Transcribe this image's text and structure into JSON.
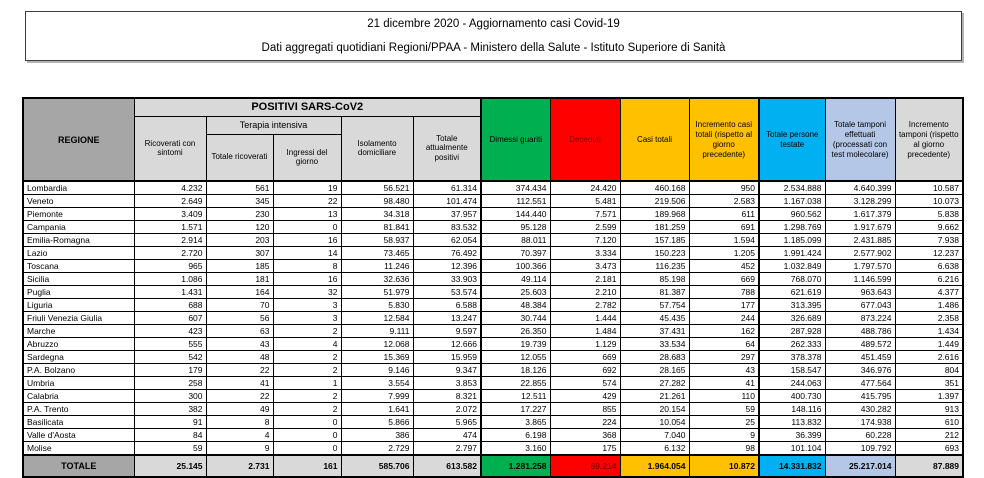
{
  "title": {
    "line1": "21 dicembre 2020 - Aggiornamento casi Covid-19",
    "line2": "Dati aggregati quotidiani Regioni/PPAA - Ministero della Salute - Istituto Superiore di Sanità"
  },
  "colors": {
    "green": "#00B050",
    "red": "#FF0000",
    "gold": "#FFC000",
    "cyan": "#00B0F0",
    "light_blue": "#B4C7E7",
    "light_gray": "#D9D9D9",
    "medium_gray": "#A6A6A6",
    "deceduti_text": "#8B0000"
  },
  "table": {
    "region_header": "REGIONE",
    "groups": {
      "positivi": "POSITIVI SARS-CoV2",
      "terapia_intensiva": "Terapia intensiva"
    },
    "sub_headers": {
      "ricoverati": "Ricoverati con sintomi",
      "totale_ricoverati": "Totale ricoverati",
      "ingressi": "Ingressi del giorno",
      "isolamento": "Isolamento domiciliare",
      "attualmente_positivi": "Totale attualmente positivi"
    },
    "colored_headers": {
      "dimessi": "Dimessi guariti",
      "deceduti": "Deceduti",
      "casi_totali": "Casi totali",
      "incremento_casi": "Incremento casi totali (rispetto al giorno precedente)",
      "persone_testate": "Totale persone testate",
      "tamponi": "Totale tamponi effettuati (processati con test molecolare)",
      "incremento_tamponi": "Incremento tamponi (rispetto al giorno precedente)"
    },
    "rows": [
      {
        "region": "Lombardia",
        "values": [
          "4.232",
          "561",
          "19",
          "56.521",
          "61.314",
          "374.434",
          "24.420",
          "460.168",
          "950",
          "2.534.888",
          "4.640.399",
          "10.587"
        ]
      },
      {
        "region": "Veneto",
        "values": [
          "2.649",
          "345",
          "22",
          "98.480",
          "101.474",
          "112.551",
          "5.481",
          "219.506",
          "2.583",
          "1.167.038",
          "3.128.299",
          "10.073"
        ]
      },
      {
        "region": "Piemonte",
        "values": [
          "3.409",
          "230",
          "13",
          "34.318",
          "37.957",
          "144.440",
          "7.571",
          "189.968",
          "611",
          "960.562",
          "1.617.379",
          "5.838"
        ]
      },
      {
        "region": "Campania",
        "values": [
          "1.571",
          "120",
          "0",
          "81.841",
          "83.532",
          "95.128",
          "2.599",
          "181.259",
          "691",
          "1.298.769",
          "1.917.679",
          "9.662"
        ]
      },
      {
        "region": "Emilia-Romagna",
        "values": [
          "2.914",
          "203",
          "16",
          "58.937",
          "62.054",
          "88.011",
          "7.120",
          "157.185",
          "1.594",
          "1.185.099",
          "2.431.885",
          "7.938"
        ]
      },
      {
        "region": "Lazio",
        "values": [
          "2.720",
          "307",
          "14",
          "73.465",
          "76.492",
          "70.397",
          "3.334",
          "150.223",
          "1.205",
          "1.991.424",
          "2.577.902",
          "12.237"
        ]
      },
      {
        "region": "Toscana",
        "values": [
          "965",
          "185",
          "8",
          "11.246",
          "12.396",
          "100.366",
          "3.473",
          "116.235",
          "452",
          "1.032.849",
          "1.797.570",
          "6.638"
        ]
      },
      {
        "region": "Sicilia",
        "values": [
          "1.086",
          "181",
          "16",
          "32.636",
          "33.903",
          "49.114",
          "2.181",
          "85.198",
          "669",
          "768.070",
          "1.146.599",
          "6.216"
        ]
      },
      {
        "region": "Puglia",
        "values": [
          "1.431",
          "164",
          "32",
          "51.979",
          "53.574",
          "25.603",
          "2.210",
          "81.387",
          "788",
          "621.619",
          "963.643",
          "4.377"
        ]
      },
      {
        "region": "Liguria",
        "values": [
          "688",
          "70",
          "3",
          "5.830",
          "6.588",
          "48.384",
          "2.782",
          "57.754",
          "177",
          "313.395",
          "677.043",
          "1.486"
        ]
      },
      {
        "region": "Friuli Venezia Giulia",
        "values": [
          "607",
          "56",
          "3",
          "12.584",
          "13.247",
          "30.744",
          "1.444",
          "45.435",
          "244",
          "326.689",
          "873.224",
          "2.358"
        ]
      },
      {
        "region": "Marche",
        "values": [
          "423",
          "63",
          "2",
          "9.111",
          "9.597",
          "26.350",
          "1.484",
          "37.431",
          "162",
          "287.928",
          "488.786",
          "1.434"
        ]
      },
      {
        "region": "Abruzzo",
        "values": [
          "555",
          "43",
          "4",
          "12.068",
          "12.666",
          "19.739",
          "1.129",
          "33.534",
          "64",
          "262.333",
          "489.572",
          "1.449"
        ]
      },
      {
        "region": "Sardegna",
        "values": [
          "542",
          "48",
          "2",
          "15.369",
          "15.959",
          "12.055",
          "669",
          "28.683",
          "297",
          "378.378",
          "451.459",
          "2.616"
        ]
      },
      {
        "region": "P.A. Bolzano",
        "values": [
          "179",
          "22",
          "2",
          "9.146",
          "9.347",
          "18.126",
          "692",
          "28.165",
          "43",
          "158.547",
          "346.976",
          "804"
        ]
      },
      {
        "region": "Umbria",
        "values": [
          "258",
          "41",
          "1",
          "3.554",
          "3.853",
          "22.855",
          "574",
          "27.282",
          "41",
          "244.063",
          "477.564",
          "351"
        ]
      },
      {
        "region": "Calabria",
        "values": [
          "300",
          "22",
          "2",
          "7.999",
          "8.321",
          "12.511",
          "429",
          "21.261",
          "110",
          "400.730",
          "415.795",
          "1.397"
        ]
      },
      {
        "region": "P.A. Trento",
        "values": [
          "382",
          "49",
          "2",
          "1.641",
          "2.072",
          "17.227",
          "855",
          "20.154",
          "59",
          "148.116",
          "430.282",
          "913"
        ]
      },
      {
        "region": "Basilicata",
        "values": [
          "91",
          "8",
          "0",
          "5.866",
          "5.965",
          "3.865",
          "224",
          "10.054",
          "25",
          "113.832",
          "174.938",
          "610"
        ]
      },
      {
        "region": "Valle d'Aosta",
        "values": [
          "84",
          "4",
          "0",
          "386",
          "474",
          "6.198",
          "368",
          "7.040",
          "9",
          "36.399",
          "60.228",
          "212"
        ]
      },
      {
        "region": "Molise",
        "values": [
          "59",
          "9",
          "0",
          "2.729",
          "2.797",
          "3.160",
          "175",
          "6.132",
          "98",
          "101.104",
          "109.792",
          "693"
        ]
      }
    ],
    "total": {
      "label": "TOTALE",
      "values": [
        "25.145",
        "2.731",
        "161",
        "585.706",
        "613.582",
        "1.281.258",
        "69.214",
        "1.964.054",
        "10.872",
        "14.331.832",
        "25.217.014",
        "87.889"
      ]
    }
  }
}
